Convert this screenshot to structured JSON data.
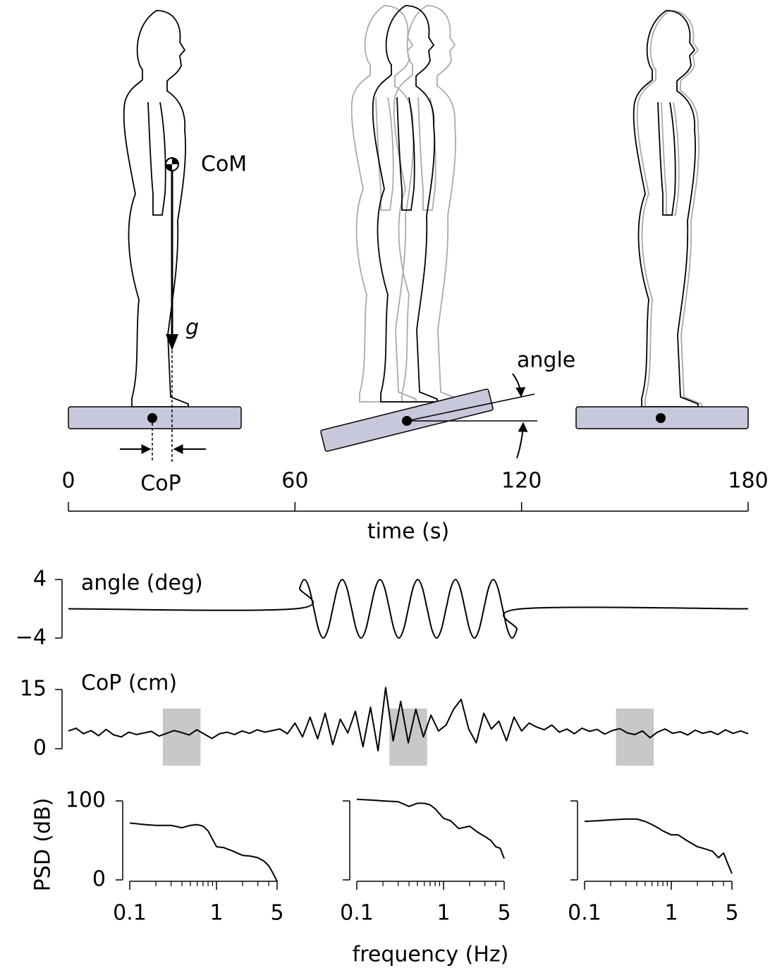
{
  "labels": {
    "com": "CoM",
    "g": "g",
    "angle": "angle",
    "cop": "CoP"
  },
  "chart_data": [
    {
      "type": "time-axis",
      "xlabel": "time (s)",
      "xlim": [
        0,
        180
      ],
      "xticks": [
        0,
        60,
        120,
        180
      ]
    },
    {
      "type": "line",
      "title": "angle (deg)",
      "color": "#000000",
      "smooth": true,
      "x": [
        0,
        60,
        61.25,
        62.5,
        63.75,
        65,
        66.25,
        67.5,
        68.75,
        70,
        71.25,
        72.5,
        73.75,
        75,
        76.25,
        77.5,
        78.75,
        80,
        81.25,
        82.5,
        83.75,
        85,
        86.25,
        87.5,
        88.75,
        90,
        91.25,
        92.5,
        93.75,
        95,
        96.25,
        97.5,
        98.75,
        100,
        101.25,
        102.5,
        103.75,
        105,
        106.25,
        107.5,
        108.75,
        110,
        111.25,
        112.5,
        113.75,
        115,
        116.25,
        117.5,
        118.75,
        120,
        180
      ],
      "values": [
        0,
        0,
        2.83,
        4,
        2.83,
        0,
        -2.83,
        -4,
        -2.83,
        0,
        2.83,
        4,
        2.83,
        0,
        -2.83,
        -4,
        -2.83,
        0,
        2.83,
        4,
        2.83,
        0,
        -2.83,
        -4,
        -2.83,
        0,
        2.83,
        4,
        2.83,
        0,
        -2.83,
        -4,
        -2.83,
        0,
        2.83,
        4,
        2.83,
        0,
        -2.83,
        -4,
        -2.83,
        0,
        2.83,
        4,
        2.83,
        0,
        -2.83,
        -4,
        -2.83,
        0,
        0
      ],
      "xlim": [
        0,
        180
      ],
      "ylim": [
        -4,
        4
      ],
      "yticks": [
        {
          "value": -4,
          "label": "−4"
        },
        4
      ]
    },
    {
      "type": "line",
      "title": "CoP (cm)",
      "color": "#000000",
      "smooth": false,
      "x": [
        0,
        2,
        4,
        6,
        8,
        10,
        12,
        14,
        16,
        18,
        20,
        22,
        24,
        26,
        28,
        30,
        32,
        34,
        36,
        38,
        40,
        42,
        44,
        46,
        48,
        50,
        52,
        54,
        56,
        58,
        60,
        62,
        64,
        66,
        68,
        70,
        72,
        74,
        76,
        78,
        80,
        82,
        84,
        86,
        88,
        90,
        92,
        94,
        96,
        98,
        100,
        102,
        104,
        106,
        108,
        110,
        112,
        114,
        116,
        118,
        120,
        122,
        124,
        126,
        128,
        130,
        132,
        134,
        136,
        138,
        140,
        142,
        144,
        146,
        148,
        150,
        152,
        154,
        156,
        158,
        160,
        162,
        164,
        166,
        168,
        170,
        172,
        174,
        176,
        178,
        180
      ],
      "values": [
        4.5,
        5.2,
        3.8,
        4.6,
        3.3,
        4.9,
        3.5,
        3.0,
        4.2,
        3.6,
        4.0,
        4.4,
        3.2,
        3.9,
        4.6,
        4.1,
        3.5,
        4.8,
        3.7,
        2.6,
        3.8,
        4.2,
        3.6,
        4.5,
        3.9,
        4.8,
        4.2,
        4.6,
        5.0,
        3.8,
        6.5,
        3.0,
        8.0,
        2.5,
        9.0,
        1.0,
        7.5,
        4.0,
        9.5,
        0.5,
        10.5,
        -0.5,
        15.5,
        2.0,
        12.0,
        1.5,
        10.0,
        3.0,
        8.5,
        4.5,
        6.0,
        10.0,
        12.5,
        5.0,
        1.5,
        9.0,
        5.0,
        7.0,
        2.0,
        8.0,
        4.5,
        6.5,
        5.5,
        4.8,
        6.0,
        4.2,
        5.0,
        3.8,
        5.2,
        4.4,
        4.9,
        3.7,
        4.6,
        5.1,
        4.0,
        3.6,
        4.5,
        2.8,
        4.2,
        5.0,
        3.9,
        4.3,
        3.5,
        4.7,
        3.9,
        4.4,
        3.6,
        4.8,
        3.9,
        4.5,
        3.8
      ],
      "xlim": [
        0,
        180
      ],
      "ylim": [
        0,
        15
      ],
      "yticks": [
        0,
        15
      ],
      "spans": [
        [
          25,
          35
        ],
        [
          85,
          95
        ],
        [
          145,
          155
        ]
      ],
      "span_color": "#c8c8c8"
    },
    {
      "type": "line",
      "color": "#000000",
      "smooth": false,
      "xscale": "log",
      "ylabel": "PSD (dB)",
      "ytick_labels": true,
      "x": [
        0.1,
        0.15,
        0.2,
        0.3,
        0.4,
        0.5,
        0.6,
        0.7,
        0.8,
        1,
        1.2,
        1.5,
        2,
        2.5,
        3,
        3.5,
        4,
        4.5,
        5
      ],
      "values": [
        72,
        70,
        69,
        69,
        66,
        69,
        70,
        68,
        62,
        42,
        41,
        37,
        31,
        30,
        28,
        24,
        18,
        8,
        -2
      ],
      "xlim": [
        0.1,
        5
      ],
      "ylim": [
        0,
        100
      ],
      "xticks": [
        0.1,
        1,
        5
      ],
      "xminor": [
        0.2,
        0.3,
        0.4,
        0.5,
        0.6,
        0.7,
        0.8,
        0.9,
        2,
        3,
        4
      ],
      "yticks": [
        0,
        100
      ]
    },
    {
      "type": "line",
      "color": "#000000",
      "smooth": false,
      "xscale": "log",
      "xlabel": "frequency (Hz)",
      "ytick_labels": false,
      "x": [
        0.1,
        0.15,
        0.2,
        0.3,
        0.4,
        0.5,
        0.6,
        0.7,
        0.8,
        1,
        1.2,
        1.5,
        2,
        2.5,
        3,
        3.5,
        4,
        4.5,
        5
      ],
      "values": [
        102,
        101,
        100,
        99,
        93,
        97,
        97,
        95,
        90,
        78,
        75,
        65,
        68,
        60,
        55,
        50,
        42,
        40,
        27
      ],
      "xlim": [
        0.1,
        5
      ],
      "ylim": [
        0,
        100
      ],
      "xticks": [
        0.1,
        1,
        5
      ],
      "xminor": [
        0.2,
        0.3,
        0.4,
        0.5,
        0.6,
        0.7,
        0.8,
        0.9,
        2,
        3,
        4
      ],
      "yticks": [
        0,
        100
      ]
    },
    {
      "type": "line",
      "color": "#000000",
      "smooth": false,
      "xscale": "log",
      "ytick_labels": false,
      "x": [
        0.1,
        0.15,
        0.2,
        0.3,
        0.4,
        0.5,
        0.6,
        0.7,
        0.8,
        1,
        1.2,
        1.5,
        2,
        2.5,
        3,
        3.5,
        4,
        4.5,
        5
      ],
      "values": [
        74,
        75,
        76,
        77,
        77,
        74,
        70,
        66,
        62,
        57,
        57,
        50,
        42,
        39,
        36,
        28,
        34,
        20,
        8
      ],
      "xlim": [
        0.1,
        5
      ],
      "ylim": [
        0,
        100
      ],
      "xticks": [
        0.1,
        1,
        5
      ],
      "xminor": [
        0.2,
        0.3,
        0.4,
        0.5,
        0.6,
        0.7,
        0.8,
        0.9,
        2,
        3,
        4
      ],
      "yticks": [
        0,
        100
      ]
    }
  ]
}
